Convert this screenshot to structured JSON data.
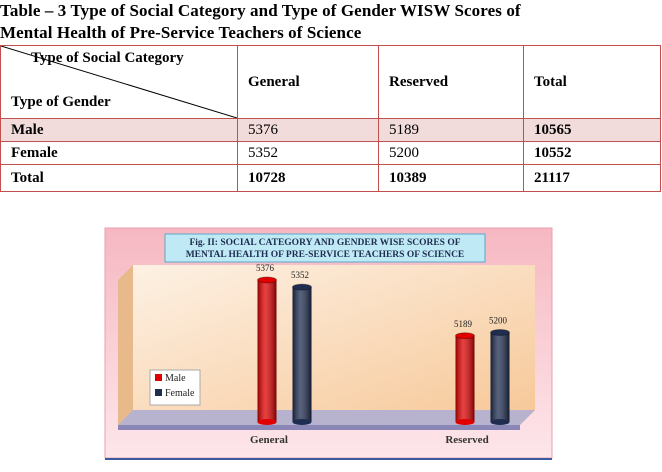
{
  "title_lines": [
    "Table – 3 Type of Social Category and Type of Gender WISW Scores of",
    "Mental Health of Pre-Service Teachers of Science"
  ],
  "table": {
    "corner_top": "Type of Social Category",
    "corner_bottom": "Type of Gender",
    "columns": [
      "General",
      "Reserved",
      "Total"
    ],
    "rows": [
      [
        "Male",
        "5376",
        "5189",
        "10565"
      ],
      [
        "Female",
        "5352",
        "5200",
        "10552"
      ],
      [
        "Total",
        "10728",
        "10389",
        "21117"
      ]
    ]
  },
  "figure": {
    "type": "bar",
    "title_lines": [
      "Fig. II: SOCIAL CATEGORY AND GENDER WISE SCORES OF",
      "MENTAL HEALTH OF  PRE-SERVICE TEACHERS OF SCIENCE"
    ],
    "categories": [
      "General",
      "Reserved"
    ],
    "series": [
      {
        "name": "Male",
        "color": "#e00000",
        "values": [
          5376,
          5189
        ]
      },
      {
        "name": "Female",
        "color": "#1f2d50",
        "values": [
          5352,
          5200
        ]
      }
    ],
    "ylim": [
      4900,
      5500
    ]
  }
}
